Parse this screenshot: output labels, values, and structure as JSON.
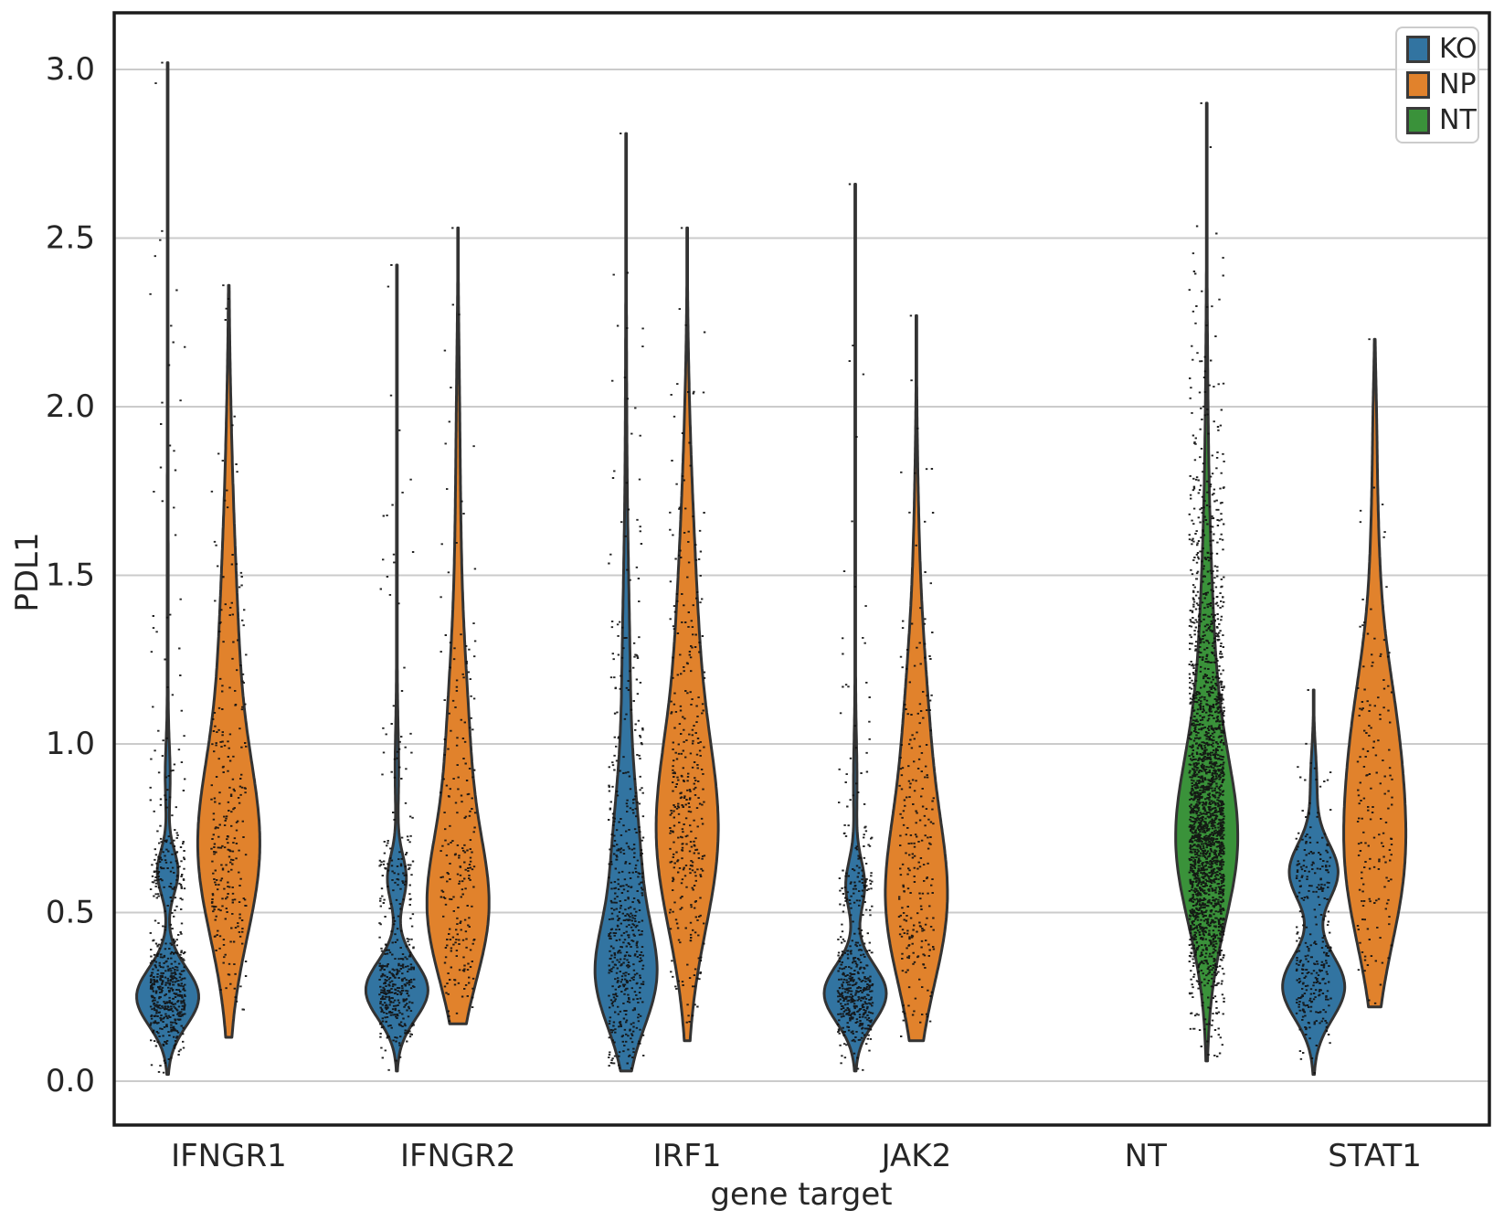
{
  "style": {
    "background": "#ffffff",
    "grid_color": "#cbcbcb",
    "spine_color": "#1c1c1c",
    "violin_edge_color": "#333333",
    "point_color": "#111111",
    "text_color": "#262626",
    "legend_border_color": "#cccccc"
  },
  "chart_data": {
    "type": "violin",
    "title": "",
    "xlabel": "gene target",
    "ylabel": "PDL1",
    "grid": true,
    "legend_position": "upper right",
    "x_categories": [
      "IFNGR1",
      "IFNGR2",
      "IRF1",
      "JAK2",
      "NT",
      "STAT1"
    ],
    "y_ticks": [
      0.0,
      0.5,
      1.0,
      1.5,
      2.0,
      2.5,
      3.0
    ],
    "y_tick_labels": [
      "0.0",
      "0.5",
      "1.0",
      "1.5",
      "2.0",
      "2.5",
      "3.0"
    ],
    "y_range": [
      -0.13,
      3.17
    ],
    "hues": [
      {
        "name": "KO",
        "color": "#3274a1"
      },
      {
        "name": "NP",
        "color": "#e1822c"
      },
      {
        "name": "NT",
        "color": "#3a923a"
      }
    ],
    "violins": [
      {
        "category": "IFNGR1",
        "hue": "KO",
        "min": 0.02,
        "max": 3.02,
        "points": 600,
        "density": [
          {
            "mu": 0.25,
            "sigma": 0.085,
            "w": 1.0
          },
          {
            "mu": 0.62,
            "sigma": 0.065,
            "w": 0.33
          },
          {
            "mu": 0.9,
            "sigma": 0.1,
            "w": 0.07
          },
          {
            "mu": 1.5,
            "sigma": 0.55,
            "w": 0.016
          }
        ]
      },
      {
        "category": "IFNGR1",
        "hue": "NP",
        "min": 0.13,
        "max": 2.36,
        "points": 270,
        "density": [
          {
            "mu": 0.68,
            "sigma": 0.26,
            "w": 1.0
          },
          {
            "mu": 1.25,
            "sigma": 0.33,
            "w": 0.3
          },
          {
            "mu": 1.85,
            "sigma": 0.28,
            "w": 0.06
          }
        ]
      },
      {
        "category": "IFNGR2",
        "hue": "KO",
        "min": 0.03,
        "max": 2.42,
        "points": 430,
        "density": [
          {
            "mu": 0.27,
            "sigma": 0.085,
            "w": 1.0
          },
          {
            "mu": 0.6,
            "sigma": 0.07,
            "w": 0.3
          },
          {
            "mu": 0.92,
            "sigma": 0.13,
            "w": 0.05
          },
          {
            "mu": 1.5,
            "sigma": 0.5,
            "w": 0.013
          }
        ]
      },
      {
        "category": "IFNGR2",
        "hue": "NP",
        "min": 0.17,
        "max": 2.53,
        "points": 230,
        "density": [
          {
            "mu": 0.5,
            "sigma": 0.21,
            "w": 1.0
          },
          {
            "mu": 0.95,
            "sigma": 0.28,
            "w": 0.38
          },
          {
            "mu": 1.55,
            "sigma": 0.33,
            "w": 0.09
          },
          {
            "mu": 2.05,
            "sigma": 0.22,
            "w": 0.025
          }
        ]
      },
      {
        "category": "IRF1",
        "hue": "KO",
        "min": 0.03,
        "max": 2.81,
        "points": 560,
        "density": [
          {
            "mu": 0.3,
            "sigma": 0.15,
            "w": 1.0
          },
          {
            "mu": 0.62,
            "sigma": 0.22,
            "w": 0.5
          },
          {
            "mu": 1.15,
            "sigma": 0.32,
            "w": 0.14
          },
          {
            "mu": 1.8,
            "sigma": 0.5,
            "w": 0.025
          }
        ]
      },
      {
        "category": "IRF1",
        "hue": "NP",
        "min": 0.12,
        "max": 2.53,
        "points": 360,
        "density": [
          {
            "mu": 0.72,
            "sigma": 0.28,
            "w": 1.0
          },
          {
            "mu": 1.3,
            "sigma": 0.33,
            "w": 0.32
          },
          {
            "mu": 1.85,
            "sigma": 0.28,
            "w": 0.06
          }
        ]
      },
      {
        "category": "JAK2",
        "hue": "KO",
        "min": 0.03,
        "max": 2.66,
        "points": 500,
        "density": [
          {
            "mu": 0.26,
            "sigma": 0.085,
            "w": 1.0
          },
          {
            "mu": 0.58,
            "sigma": 0.075,
            "w": 0.3
          },
          {
            "mu": 0.88,
            "sigma": 0.13,
            "w": 0.05
          },
          {
            "mu": 1.5,
            "sigma": 0.55,
            "w": 0.012
          }
        ]
      },
      {
        "category": "JAK2",
        "hue": "NP",
        "min": 0.12,
        "max": 2.27,
        "points": 250,
        "density": [
          {
            "mu": 0.52,
            "sigma": 0.24,
            "w": 1.0
          },
          {
            "mu": 1.0,
            "sigma": 0.28,
            "w": 0.4
          },
          {
            "mu": 1.55,
            "sigma": 0.28,
            "w": 0.07
          }
        ]
      },
      {
        "category": "NT",
        "hue": "NT",
        "min": 0.06,
        "max": 2.9,
        "points": 2300,
        "density": [
          {
            "mu": 0.7,
            "sigma": 0.24,
            "w": 1.0
          },
          {
            "mu": 1.15,
            "sigma": 0.33,
            "w": 0.26
          },
          {
            "mu": 1.8,
            "sigma": 0.38,
            "w": 0.045
          }
        ]
      },
      {
        "category": "STAT1",
        "hue": "KO",
        "min": 0.02,
        "max": 1.16,
        "points": 320,
        "density": [
          {
            "mu": 0.28,
            "sigma": 0.095,
            "w": 1.0
          },
          {
            "mu": 0.62,
            "sigma": 0.085,
            "w": 0.78
          },
          {
            "mu": 0.88,
            "sigma": 0.1,
            "w": 0.1
          }
        ]
      },
      {
        "category": "STAT1",
        "hue": "NP",
        "min": 0.22,
        "max": 2.2,
        "points": 165,
        "density": [
          {
            "mu": 0.62,
            "sigma": 0.24,
            "w": 1.0
          },
          {
            "mu": 1.02,
            "sigma": 0.24,
            "w": 0.72
          },
          {
            "mu": 1.55,
            "sigma": 0.28,
            "w": 0.14
          },
          {
            "mu": 1.98,
            "sigma": 0.13,
            "w": 0.03
          }
        ]
      }
    ]
  },
  "legend": {
    "items": [
      {
        "label": "KO",
        "color": "#3274a1"
      },
      {
        "label": "NP",
        "color": "#e1822c"
      },
      {
        "label": "NT",
        "color": "#3a923a"
      }
    ]
  }
}
